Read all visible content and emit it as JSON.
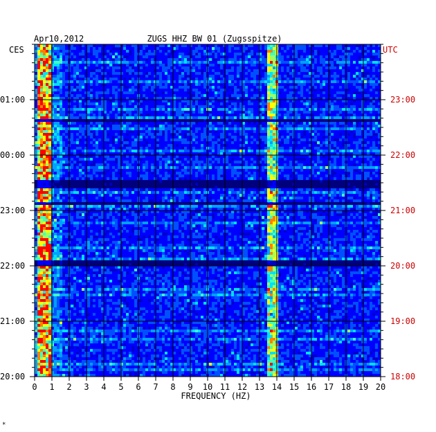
{
  "chart_data": {
    "type": "heatmap",
    "title": "ZUGS HHZ BW 01 (Zugsspitze)",
    "date": "Apr10,2012",
    "left_timezone": "CES",
    "right_timezone": "UTC",
    "xlabel": "FREQUENCY (HZ)",
    "xlim": [
      0,
      20
    ],
    "x_ticks": [
      "0",
      "1",
      "2",
      "3",
      "4",
      "5",
      "6",
      "7",
      "8",
      "9",
      "10",
      "11",
      "12",
      "13",
      "14",
      "15",
      "16",
      "17",
      "18",
      "19",
      "20"
    ],
    "y_ticks_left": [
      "01:00",
      "00:00",
      "23:00",
      "22:00",
      "21:00",
      "20:00"
    ],
    "y_ticks_right": [
      "23:00",
      "22:00",
      "21:00",
      "20:00",
      "19:00",
      "18:00"
    ],
    "colormap": [
      "#00007f",
      "#0000cc",
      "#0000ff",
      "#0050ff",
      "#00a0ff",
      "#00e0ff",
      "#40ffc0",
      "#a0ff60",
      "#ffff00",
      "#ff8000",
      "#ff0000"
    ],
    "dominant_bands_hz": [
      [
        0.1,
        0.9
      ],
      [
        13.5,
        14.0
      ]
    ],
    "grid": true
  },
  "footer_mark": "*"
}
